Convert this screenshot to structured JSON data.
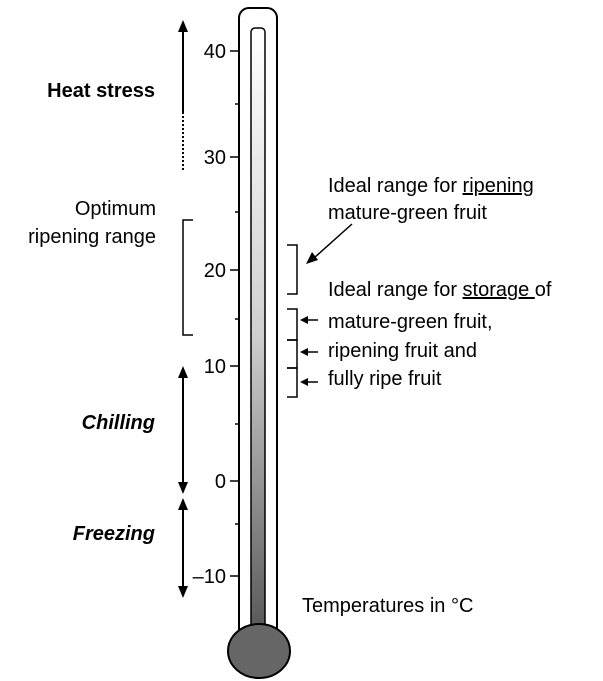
{
  "diagram": {
    "scale_labels": [
      "40",
      "30",
      "20",
      "10",
      "0",
      "–10"
    ],
    "zones": {
      "heat_stress": "Heat stress",
      "optimum_line1": "Optimum",
      "optimum_line2": "ripening range",
      "chilling": "Chilling",
      "freezing": "Freezing"
    },
    "annotations": {
      "ripening_line1_pre": "Ideal range for ",
      "ripening_line1_key": "ripening",
      "ripening_line2": "mature-green fruit",
      "storage_line1_pre": "Ideal range for ",
      "storage_line1_key": "storage ",
      "storage_line1_post": "of",
      "storage_line2": "mature-green fruit,",
      "storage_line3": "ripening fruit and",
      "storage_line4": "fully ripe fruit"
    },
    "units_note": "Temperatures in °C"
  }
}
